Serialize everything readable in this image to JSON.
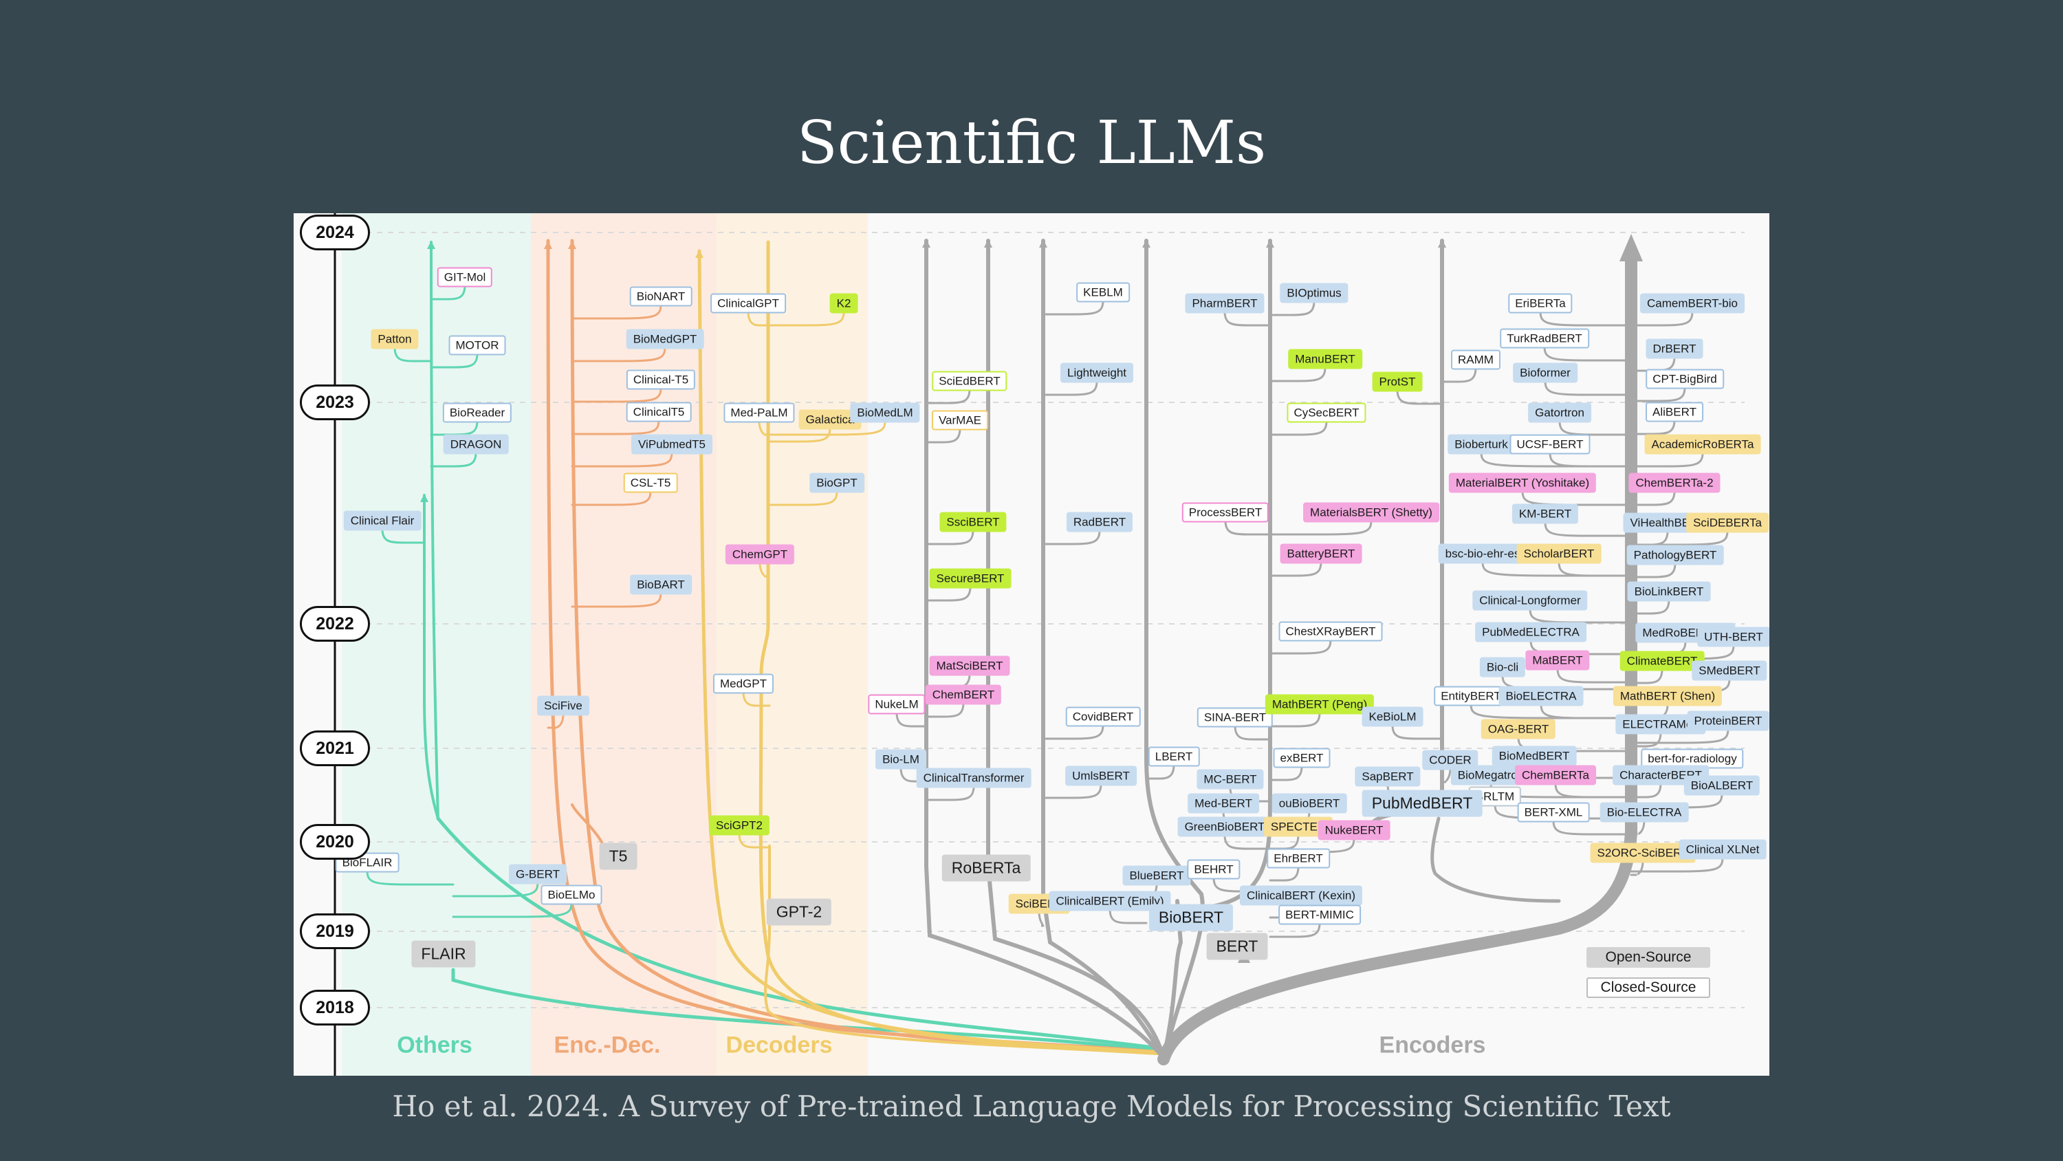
{
  "slide": {
    "title": "Scientific LLMs",
    "caption": "Ho et al. 2024. A Survey of Pre-trained Language Models for Processing Scientific Text"
  },
  "colors": {
    "background": "#37474f",
    "others": "#5ed6b2",
    "enc_dec": "#f0a877",
    "decoders": "#f0cb6a",
    "encoders": "#a8a8a8"
  },
  "timeline": {
    "years": [
      "2024",
      "2023",
      "2022",
      "2021",
      "2020",
      "2019",
      "2018"
    ]
  },
  "groups": [
    {
      "id": "others",
      "label": "Others"
    },
    {
      "id": "encdec",
      "label": "Enc.-Dec."
    },
    {
      "id": "decoders",
      "label": "Decoders"
    },
    {
      "id": "encoders",
      "label": "Encoders"
    }
  ],
  "legend": {
    "open_source": "Open-Source",
    "closed_source": "Closed-Source"
  },
  "roots": [
    {
      "name": "FLAIR",
      "group": "others"
    },
    {
      "name": "T5",
      "group": "encdec"
    },
    {
      "name": "GPT-2",
      "group": "decoders"
    },
    {
      "name": "RoBERTa",
      "group": "encoders"
    },
    {
      "name": "BERT",
      "group": "encoders"
    },
    {
      "name": "BioBERT",
      "group": "encoders"
    },
    {
      "name": "PubMedBERT",
      "group": "encoders"
    }
  ],
  "models": [
    {
      "name": "GIT-Mol",
      "group": "others",
      "style": "cs-pink"
    },
    {
      "name": "Patton",
      "group": "others",
      "style": "os-yellow"
    },
    {
      "name": "MOTOR",
      "group": "others",
      "style": "cs-blue"
    },
    {
      "name": "BioReader",
      "group": "others",
      "style": "cs-blue"
    },
    {
      "name": "DRAGON",
      "group": "others",
      "style": "os-blue"
    },
    {
      "name": "Clinical Flair",
      "group": "others",
      "style": "os-blue"
    },
    {
      "name": "BioFLAIR",
      "group": "others",
      "style": "cs-blue"
    },
    {
      "name": "G-BERT",
      "group": "others",
      "style": "os-blue"
    },
    {
      "name": "BioELMo",
      "group": "others",
      "style": "cs-blue"
    },
    {
      "name": "BioNART",
      "group": "encdec",
      "style": "cs-blue"
    },
    {
      "name": "BioMedGPT",
      "group": "encdec",
      "style": "os-blue"
    },
    {
      "name": "Clinical-T5",
      "group": "encdec",
      "style": "cs-blue"
    },
    {
      "name": "ClinicalT5",
      "group": "encdec",
      "style": "cs-blue"
    },
    {
      "name": "ViPubmedT5",
      "group": "encdec",
      "style": "os-blue"
    },
    {
      "name": "CSL-T5",
      "group": "encdec",
      "style": "cs-yellow"
    },
    {
      "name": "BioBART",
      "group": "encdec",
      "style": "os-blue"
    },
    {
      "name": "SciFive",
      "group": "encdec",
      "style": "os-blue"
    },
    {
      "name": "ClinicalGPT",
      "group": "decoders",
      "style": "cs-blue"
    },
    {
      "name": "K2",
      "group": "decoders",
      "style": "os-green"
    },
    {
      "name": "Med-PaLM",
      "group": "decoders",
      "style": "cs-blue"
    },
    {
      "name": "Galactica",
      "group": "decoders",
      "style": "os-yellow"
    },
    {
      "name": "BioMedLM",
      "group": "decoders",
      "style": "os-blue"
    },
    {
      "name": "BioGPT",
      "group": "decoders",
      "style": "os-blue"
    },
    {
      "name": "ChemGPT",
      "group": "decoders",
      "style": "os-pink"
    },
    {
      "name": "MedGPT",
      "group": "decoders",
      "style": "cs-blue"
    },
    {
      "name": "SciGPT2",
      "group": "decoders",
      "style": "os-green"
    },
    {
      "name": "SciEdBERT",
      "group": "encoders",
      "style": "cs-green"
    },
    {
      "name": "VarMAE",
      "group": "encoders",
      "style": "cs-yellow"
    },
    {
      "name": "SsciBERT",
      "group": "encoders",
      "style": "os-green"
    },
    {
      "name": "SecureBERT",
      "group": "encoders",
      "style": "os-green"
    },
    {
      "name": "MatSciBERT",
      "group": "encoders",
      "style": "os-pink"
    },
    {
      "name": "ChemBERT",
      "group": "encoders",
      "style": "os-pink"
    },
    {
      "name": "NukeLM",
      "group": "encoders",
      "style": "cs-pink"
    },
    {
      "name": "Bio-LM",
      "group": "encoders",
      "style": "os-blue"
    },
    {
      "name": "ClinicalTransformer",
      "group": "encoders",
      "style": "os-blue"
    },
    {
      "name": "KEBLM",
      "group": "encoders",
      "style": "cs-blue"
    },
    {
      "name": "Lightweight",
      "group": "encoders",
      "style": "os-blue"
    },
    {
      "name": "RadBERT",
      "group": "encoders",
      "style": "os-blue"
    },
    {
      "name": "CovidBERT",
      "group": "encoders",
      "style": "cs-blue"
    },
    {
      "name": "UmlsBERT",
      "group": "encoders",
      "style": "os-blue"
    },
    {
      "name": "SciBERT",
      "group": "encoders",
      "style": "os-yellow"
    },
    {
      "name": "ClinicalBERT (Emily)",
      "group": "encoders",
      "style": "os-blue"
    },
    {
      "name": "LBERT",
      "group": "encoders",
      "style": "cs-blue"
    },
    {
      "name": "BlueBERT",
      "group": "encoders",
      "style": "os-blue"
    },
    {
      "name": "BEHRT",
      "group": "encoders",
      "style": "cs-blue"
    },
    {
      "name": "PharmBERT",
      "group": "encoders",
      "style": "os-blue"
    },
    {
      "name": "BIOptimus",
      "group": "encoders",
      "style": "os-blue"
    },
    {
      "name": "ManuBERT",
      "group": "encoders",
      "style": "os-green"
    },
    {
      "name": "CySecBERT",
      "group": "encoders",
      "style": "cs-green"
    },
    {
      "name": "ProcessBERT",
      "group": "encoders",
      "style": "cs-pink"
    },
    {
      "name": "MaterialsBERT (Shetty)",
      "group": "encoders",
      "style": "os-pink"
    },
    {
      "name": "BatteryBERT",
      "group": "encoders",
      "style": "os-pink"
    },
    {
      "name": "ChestXRayBERT",
      "group": "encoders",
      "style": "cs-blue"
    },
    {
      "name": "SINA-BERT",
      "group": "encoders",
      "style": "cs-blue"
    },
    {
      "name": "MathBERT (Peng)",
      "group": "encoders",
      "style": "os-green"
    },
    {
      "name": "exBERT",
      "group": "encoders",
      "style": "cs-blue"
    },
    {
      "name": "MC-BERT",
      "group": "encoders",
      "style": "os-blue"
    },
    {
      "name": "Med-BERT",
      "group": "encoders",
      "style": "os-blue"
    },
    {
      "name": "ouBioBERT",
      "group": "encoders",
      "style": "os-blue"
    },
    {
      "name": "GreenBioBERT",
      "group": "encoders",
      "style": "os-blue"
    },
    {
      "name": "SPECTER",
      "group": "encoders",
      "style": "os-yellow"
    },
    {
      "name": "NukeBERT",
      "group": "encoders",
      "style": "os-pink"
    },
    {
      "name": "EhrBERT",
      "group": "encoders",
      "style": "cs-blue"
    },
    {
      "name": "ClinicalBERT (Kexin)",
      "group": "encoders",
      "style": "os-blue"
    },
    {
      "name": "BERT-MIMIC",
      "group": "encoders",
      "style": "cs-blue"
    },
    {
      "name": "RAMM",
      "group": "encoders",
      "style": "cs-blue"
    },
    {
      "name": "ProtST",
      "group": "encoders",
      "style": "os-green"
    },
    {
      "name": "KeBioLM",
      "group": "encoders",
      "style": "os-blue"
    },
    {
      "name": "SapBERT",
      "group": "encoders",
      "style": "os-blue"
    },
    {
      "name": "CODER",
      "group": "encoders",
      "style": "os-blue"
    },
    {
      "name": "EriBERTa",
      "group": "encoders",
      "style": "cs-blue"
    },
    {
      "name": "CamemBERT-bio",
      "group": "encoders",
      "style": "os-blue"
    },
    {
      "name": "TurkRadBERT",
      "group": "encoders",
      "style": "cs-blue"
    },
    {
      "name": "DrBERT",
      "group": "encoders",
      "style": "os-blue"
    },
    {
      "name": "Bioformer",
      "group": "encoders",
      "style": "os-blue"
    },
    {
      "name": "CPT-BigBird",
      "group": "encoders",
      "style": "cs-blue"
    },
    {
      "name": "Gatortron",
      "group": "encoders",
      "style": "os-blue"
    },
    {
      "name": "AliBERT",
      "group": "encoders",
      "style": "cs-blue"
    },
    {
      "name": "Bioberturk",
      "group": "encoders",
      "style": "os-blue"
    },
    {
      "name": "UCSF-BERT",
      "group": "encoders",
      "style": "cs-blue"
    },
    {
      "name": "AcademicRoBERTa",
      "group": "encoders",
      "style": "os-yellow"
    },
    {
      "name": "MaterialBERT (Yoshitake)",
      "group": "encoders",
      "style": "os-pink"
    },
    {
      "name": "ChemBERTa-2",
      "group": "encoders",
      "style": "os-pink"
    },
    {
      "name": "KM-BERT",
      "group": "encoders",
      "style": "os-blue"
    },
    {
      "name": "ViHealthBERT",
      "group": "encoders",
      "style": "os-blue"
    },
    {
      "name": "SciDEBERTa",
      "group": "encoders",
      "style": "os-yellow"
    },
    {
      "name": "bsc-bio-ehr-es",
      "group": "encoders",
      "style": "os-blue"
    },
    {
      "name": "ScholarBERT",
      "group": "encoders",
      "style": "os-yellow"
    },
    {
      "name": "PathologyBERT",
      "group": "encoders",
      "style": "os-blue"
    },
    {
      "name": "BioLinkBERT",
      "group": "encoders",
      "style": "os-blue"
    },
    {
      "name": "Clinical-Longformer",
      "group": "encoders",
      "style": "os-blue"
    },
    {
      "name": "PubMedELECTRA",
      "group": "encoders",
      "style": "os-blue"
    },
    {
      "name": "MedRoBERTa.nl",
      "group": "encoders",
      "style": "os-blue"
    },
    {
      "name": "UTH-BERT",
      "group": "encoders",
      "style": "os-blue"
    },
    {
      "name": "Bio-cli",
      "group": "encoders",
      "style": "os-blue"
    },
    {
      "name": "MatBERT",
      "group": "encoders",
      "style": "os-pink"
    },
    {
      "name": "ClimateBERT",
      "group": "encoders",
      "style": "os-green"
    },
    {
      "name": "SMedBERT",
      "group": "encoders",
      "style": "os-blue"
    },
    {
      "name": "EntityBERT",
      "group": "encoders",
      "style": "cs-blue"
    },
    {
      "name": "BioELECTRA",
      "group": "encoders",
      "style": "os-blue"
    },
    {
      "name": "MathBERT (Shen)",
      "group": "encoders",
      "style": "os-yellow"
    },
    {
      "name": "OAG-BERT",
      "group": "encoders",
      "style": "os-yellow"
    },
    {
      "name": "ELECTRAMed",
      "group": "encoders",
      "style": "os-blue"
    },
    {
      "name": "ProteinBERT",
      "group": "encoders",
      "style": "os-blue"
    },
    {
      "name": "BioMedBERT",
      "group": "encoders",
      "style": "os-blue"
    },
    {
      "name": "bert-for-radiology",
      "group": "encoders",
      "style": "cs-blue"
    },
    {
      "name": "BioMegatron",
      "group": "encoders",
      "style": "os-blue"
    },
    {
      "name": "ChemBERTa",
      "group": "encoders",
      "style": "os-pink"
    },
    {
      "name": "CharacterBERT",
      "group": "encoders",
      "style": "os-blue"
    },
    {
      "name": "BioALBERT",
      "group": "encoders",
      "style": "os-blue"
    },
    {
      "name": "BRLTM",
      "group": "encoders",
      "style": "cs-white"
    },
    {
      "name": "BERT-XML",
      "group": "encoders",
      "style": "cs-blue"
    },
    {
      "name": "Bio-ELECTRA",
      "group": "encoders",
      "style": "os-blue"
    },
    {
      "name": "S2ORC-SciBERT",
      "group": "encoders",
      "style": "os-yellow"
    },
    {
      "name": "Clinical XLNet",
      "group": "encoders",
      "style": "os-blue"
    }
  ]
}
